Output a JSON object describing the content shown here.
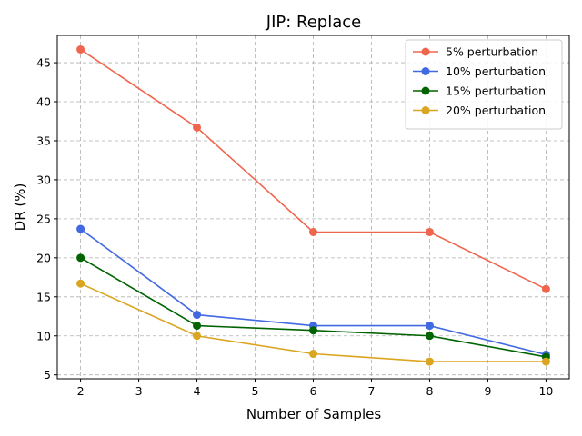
{
  "chart_data": {
    "type": "line",
    "title": "JIP: Replace",
    "xlabel": "Number of Samples",
    "ylabel": "DR (%)",
    "x": [
      2,
      4,
      6,
      8,
      10
    ],
    "xticks": [
      2,
      3,
      4,
      5,
      6,
      7,
      8,
      9,
      10
    ],
    "yticks": [
      5,
      10,
      15,
      20,
      25,
      30,
      35,
      40,
      45
    ],
    "xlim": [
      1.6,
      10.4
    ],
    "ylim": [
      4.5,
      48.5
    ],
    "grid": true,
    "legend_position": "top-right",
    "series": [
      {
        "name": "5% perturbation",
        "color": "#f0654d",
        "values": [
          46.7,
          36.7,
          23.3,
          23.3,
          16.0
        ]
      },
      {
        "name": "10% perturbation",
        "color": "#4169e1",
        "values": [
          23.7,
          12.7,
          11.3,
          11.3,
          7.6
        ]
      },
      {
        "name": "15% perturbation",
        "color": "#006400",
        "values": [
          20.0,
          11.3,
          10.7,
          10.0,
          7.3
        ]
      },
      {
        "name": "20% perturbation",
        "color": "#daa520",
        "values": [
          16.7,
          10.0,
          7.7,
          6.7,
          6.7
        ]
      }
    ]
  }
}
